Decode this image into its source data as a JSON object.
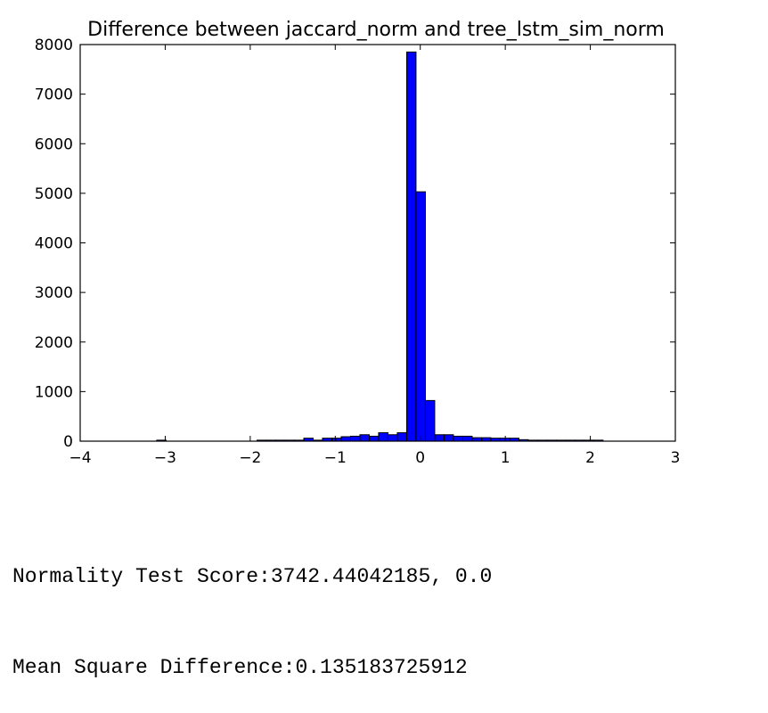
{
  "chart_data": {
    "type": "bar",
    "title": "Difference between jaccard_norm and tree_lstm_sim_norm",
    "xlabel": "",
    "ylabel": "",
    "xlim": [
      -4,
      3
    ],
    "ylim": [
      0,
      8000
    ],
    "x_ticks": [
      -4,
      -3,
      -2,
      -1,
      0,
      1,
      2,
      3
    ],
    "x_tick_labels": [
      "−4",
      "−3",
      "−2",
      "−1",
      "0",
      "1",
      "2",
      "3"
    ],
    "y_ticks": [
      0,
      1000,
      2000,
      3000,
      4000,
      5000,
      6000,
      7000,
      8000
    ],
    "y_tick_labels": [
      "0",
      "1000",
      "2000",
      "3000",
      "4000",
      "5000",
      "6000",
      "7000",
      "8000"
    ],
    "bar_color": "#0000ff",
    "edge_color": "#000000",
    "grid": false,
    "bins": [
      {
        "x0": -3.1,
        "x1": -2.99,
        "count": 20
      },
      {
        "x0": -1.92,
        "x1": -1.81,
        "count": 20
      },
      {
        "x0": -1.81,
        "x1": -1.7,
        "count": 20
      },
      {
        "x0": -1.7,
        "x1": -1.59,
        "count": 20
      },
      {
        "x0": -1.59,
        "x1": -1.48,
        "count": 20
      },
      {
        "x0": -1.48,
        "x1": -1.37,
        "count": 20
      },
      {
        "x0": -1.37,
        "x1": -1.26,
        "count": 60
      },
      {
        "x0": -1.26,
        "x1": -1.15,
        "count": 20
      },
      {
        "x0": -1.15,
        "x1": -1.04,
        "count": 60
      },
      {
        "x0": -1.04,
        "x1": -0.93,
        "count": 60
      },
      {
        "x0": -0.93,
        "x1": -0.82,
        "count": 90
      },
      {
        "x0": -0.82,
        "x1": -0.71,
        "count": 100
      },
      {
        "x0": -0.71,
        "x1": -0.6,
        "count": 130
      },
      {
        "x0": -0.6,
        "x1": -0.49,
        "count": 100
      },
      {
        "x0": -0.49,
        "x1": -0.38,
        "count": 170
      },
      {
        "x0": -0.38,
        "x1": -0.27,
        "count": 130
      },
      {
        "x0": -0.27,
        "x1": -0.16,
        "count": 170
      },
      {
        "x0": -0.16,
        "x1": -0.05,
        "count": 7850
      },
      {
        "x0": -0.05,
        "x1": 0.06,
        "count": 5030
      },
      {
        "x0": 0.06,
        "x1": 0.17,
        "count": 820
      },
      {
        "x0": 0.17,
        "x1": 0.28,
        "count": 130
      },
      {
        "x0": 0.28,
        "x1": 0.39,
        "count": 130
      },
      {
        "x0": 0.39,
        "x1": 0.5,
        "count": 100
      },
      {
        "x0": 0.5,
        "x1": 0.61,
        "count": 100
      },
      {
        "x0": 0.61,
        "x1": 0.72,
        "count": 70
      },
      {
        "x0": 0.72,
        "x1": 0.83,
        "count": 70
      },
      {
        "x0": 0.83,
        "x1": 0.94,
        "count": 60
      },
      {
        "x0": 0.94,
        "x1": 1.05,
        "count": 60
      },
      {
        "x0": 1.05,
        "x1": 1.16,
        "count": 60
      },
      {
        "x0": 1.16,
        "x1": 1.27,
        "count": 30
      },
      {
        "x0": 1.27,
        "x1": 1.38,
        "count": 20
      },
      {
        "x0": 1.38,
        "x1": 1.49,
        "count": 20
      },
      {
        "x0": 1.49,
        "x1": 1.6,
        "count": 20
      },
      {
        "x0": 1.6,
        "x1": 1.71,
        "count": 20
      },
      {
        "x0": 1.71,
        "x1": 1.82,
        "count": 20
      },
      {
        "x0": 1.82,
        "x1": 1.93,
        "count": 20
      },
      {
        "x0": 1.93,
        "x1": 2.04,
        "count": 20
      },
      {
        "x0": 2.04,
        "x1": 2.15,
        "count": 20
      }
    ]
  },
  "output": {
    "normality_line": "Normality Test Score:3742.44042185, 0.0",
    "msd_line": "Mean Square Difference:0.135183725912"
  }
}
